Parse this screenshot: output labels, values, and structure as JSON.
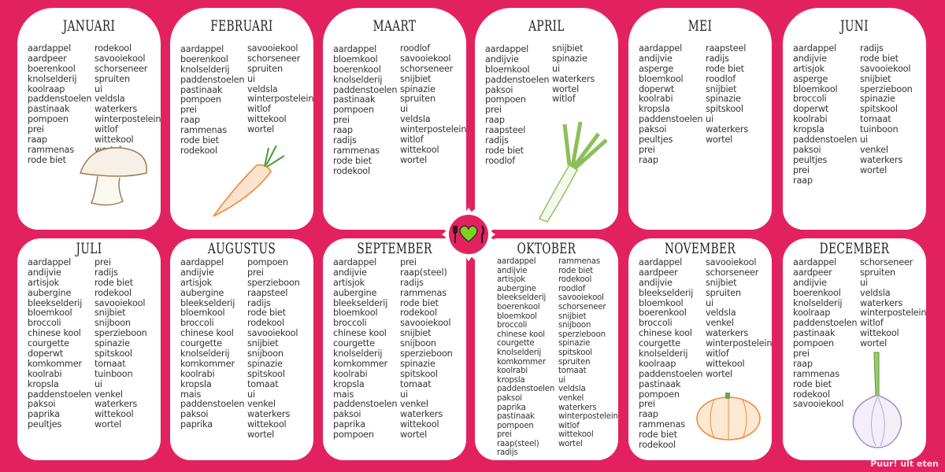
{
  "colors": {
    "background": "#e2225f",
    "card": "#ffffff",
    "badge_icon": "#7ed321"
  },
  "brand": "Puur! uit eten",
  "badge_icon": "fork-heart-knife-icon",
  "months": [
    {
      "name": "JANUARI",
      "illustration": "mushroom",
      "left": [
        "aardappel",
        "aardpeer",
        "boerenkool",
        "knolselderij",
        "koolraap",
        "paddenstoelen",
        "pastinaak",
        "pompoen",
        "prei",
        "raap",
        "rammenas",
        "rode biet"
      ],
      "right": [
        "rodekool",
        "savooiekool",
        "schorseneer",
        "spruiten",
        "ui",
        "veldsla",
        "waterkers",
        "winterpostelein",
        "witlof",
        "wittekool",
        "wortel"
      ]
    },
    {
      "name": "FEBRUARI",
      "illustration": "carrot",
      "left": [
        "aardappel",
        "boerenkool",
        "knolselderij",
        "paddenstoelen",
        "pastinaak",
        "pompoen",
        "prei",
        "raap",
        "rammenas",
        "rode biet",
        "rodekool"
      ],
      "right": [
        "savooiekool",
        "schorseneer",
        "spruiten",
        "ui",
        "veldsla",
        "winterpostelein",
        "witlof",
        "wittekool",
        "wortel"
      ]
    },
    {
      "name": "MAART",
      "illustration": "",
      "left": [
        "aardappel",
        "bloemkool",
        "boerenkool",
        "knolselderij",
        "paddenstoelen",
        "pastinaak",
        "pompoen",
        "prei",
        "raap",
        "radijs",
        "rammenas",
        "rode biet",
        "rodekool"
      ],
      "right": [
        "roodlof",
        "savooiekool",
        "schorseneer",
        "snijbiet",
        "spinazie",
        "spruiten",
        "ui",
        "veldsla",
        "winterpostelein",
        "witlof",
        "wittekool",
        "wortel"
      ]
    },
    {
      "name": "APRIL",
      "illustration": "leek",
      "left": [
        "aardappel",
        "andijvie",
        "bloemkool",
        "paddenstoelen",
        "paksoi",
        "pompoen",
        "prei",
        "raap",
        "raapsteel",
        "radijs",
        "rode biet",
        "roodlof"
      ],
      "right": [
        "snijbiet",
        "spinazie",
        "ui",
        "waterkers",
        "wortel",
        "witlof"
      ]
    },
    {
      "name": "MEI",
      "illustration": "",
      "left": [
        "aardappel",
        "andijvie",
        "asperge",
        "bloemkool",
        "doperwt",
        "koolrabi",
        "kropsla",
        "paddenstoelen",
        "paksoi",
        "peultjes",
        "prei",
        "raap"
      ],
      "right": [
        "raapsteel",
        "radijs",
        "rode biet",
        "roodlof",
        "snijbiet",
        "spinazie",
        "spitskool",
        "ui",
        "waterkers",
        "wortel"
      ]
    },
    {
      "name": "JUNI",
      "illustration": "",
      "left": [
        "aardappel",
        "andijvie",
        "artisjok",
        "asperge",
        "bloemkool",
        "broccoli",
        "doperwt",
        "koolrabi",
        "kropsla",
        "paddenstoelen",
        "paksoi",
        "peultjes",
        "prei",
        "raap"
      ],
      "right": [
        "radijs",
        "rode biet",
        "savooiekool",
        "snijbiet",
        "sperzieboon",
        "spinazie",
        "spitskool",
        "tomaat",
        "tuinboon",
        "ui",
        "venkel",
        "waterkers",
        "wortel"
      ]
    },
    {
      "name": "JULI",
      "illustration": "",
      "left": [
        "aardappel",
        "andijvie",
        "artisjok",
        "aubergine",
        "bleekselderij",
        "bloemkool",
        "broccoli",
        "chinese kool",
        "courgette",
        "doperwt",
        "komkommer",
        "koolrabi",
        "kropsla",
        "paddenstoelen",
        "paksoi",
        "paprika",
        "peultjes"
      ],
      "right": [
        "prei",
        "radijs",
        "rode biet",
        "rodekool",
        "savooiekool",
        "snijbiet",
        "snijboon",
        "sperzieboon",
        "spinazie",
        "spitskool",
        "tomaat",
        "tuinboon",
        "ui",
        "venkel",
        "waterkers",
        "wittekool",
        "wortel"
      ]
    },
    {
      "name": "AUGUSTUS",
      "illustration": "",
      "left": [
        "aardappel",
        "andijvie",
        "artisjok",
        "aubergine",
        "bleekselderij",
        "bloemkool",
        "broccoli",
        "chinese kool",
        "courgette",
        "knolselderij",
        "komkommer",
        "koolrabi",
        "kropsla",
        "mais",
        "paddenstoelen",
        "paksoi",
        "paprika"
      ],
      "right": [
        "pompoen",
        "prei",
        "sperzieboon",
        "raapsteel",
        "radijs",
        "rode biet",
        "rodekool",
        "savooiekool",
        "snijbiet",
        "snijboon",
        "spinazie",
        "spitskool",
        "tomaat",
        "ui",
        "venkel",
        "waterkers",
        "wittekool",
        "wortel"
      ]
    },
    {
      "name": "SEPTEMBER",
      "illustration": "",
      "left": [
        "aardappel",
        "andijvie",
        "artisjok",
        "aubergine",
        "bleekselderij",
        "bloemkool",
        "broccoli",
        "chinese kool",
        "courgette",
        "knolselderij",
        "komkommer",
        "koolrabi",
        "kropsla",
        "mais",
        "paddenstoelen",
        "paksoi",
        "paprika",
        "pompoen"
      ],
      "right": [
        "prei",
        "raap(steel)",
        "radijs",
        "rammenas",
        "rode biet",
        "rodekool",
        "savooiekool",
        "snijbiet",
        "snijboon",
        "sperzieboon",
        "spinazie",
        "spitskool",
        "tomaat",
        "ui",
        "venkel",
        "waterkers",
        "wittekool",
        "wortel"
      ]
    },
    {
      "name": "OKTOBER",
      "illustration": "",
      "left": [
        "aardappel",
        "andijvie",
        "artisjok",
        "aubergine",
        "bleekselderij",
        "boerenkool",
        "bloemkool",
        "broccoli",
        "chinese kool",
        "courgette",
        "knolselderij",
        "komkommer",
        "koolrabi",
        "kropsla",
        "paddenstoelen",
        "paksoi",
        "paprika",
        "pastinaak",
        "pompoen",
        "prei",
        "raap(steel)",
        "radijs"
      ],
      "right": [
        "rammenas",
        "rode biet",
        "rodekool",
        "roodlof",
        "savooiekool",
        "schorseneer",
        "snijbiet",
        "snijboon",
        "sperzieboon",
        "spinazie",
        "spitskool",
        "spruiten",
        "tomaat",
        "ui",
        "veldsla",
        "venkel",
        "waterkers",
        "winterpostelein",
        "witlof",
        "wittekool",
        "wortel"
      ]
    },
    {
      "name": "NOVEMBER",
      "illustration": "pumpkin",
      "left": [
        "aardappel",
        "aardpeer",
        "andijvie",
        "bleekselderij",
        "bloemkool",
        "boerenkool",
        "broccoli",
        "chinese kool",
        "courgette",
        "knolselderij",
        "koolraap",
        "paddenstoelen",
        "pastinaak",
        "pompoen",
        "prei",
        "raap",
        "rammenas",
        "rode biet",
        "rodekool"
      ],
      "right": [
        "savooiekool",
        "schorseneer",
        "snijbiet",
        "spruiten",
        "ui",
        "veldsla",
        "venkel",
        "waterkers",
        "winterpostelein",
        "witlof",
        "wittekool",
        "wortel"
      ]
    },
    {
      "name": "DECEMBER",
      "illustration": "onion",
      "left": [
        "aardappel",
        "aardpeer",
        "andijvie",
        "boerenkool",
        "knolselderij",
        "koolraap",
        "paddenstoelen",
        "pastinaak",
        "pompoen",
        "prei",
        "raap",
        "rammenas",
        "rode biet",
        "rodekool",
        "savooiekool"
      ],
      "right": [
        "schorseneer",
        "spruiten",
        "ui",
        "veldsla",
        "waterkers",
        "winterpostelein",
        "witlof",
        "wittekool",
        "wortel"
      ]
    }
  ]
}
